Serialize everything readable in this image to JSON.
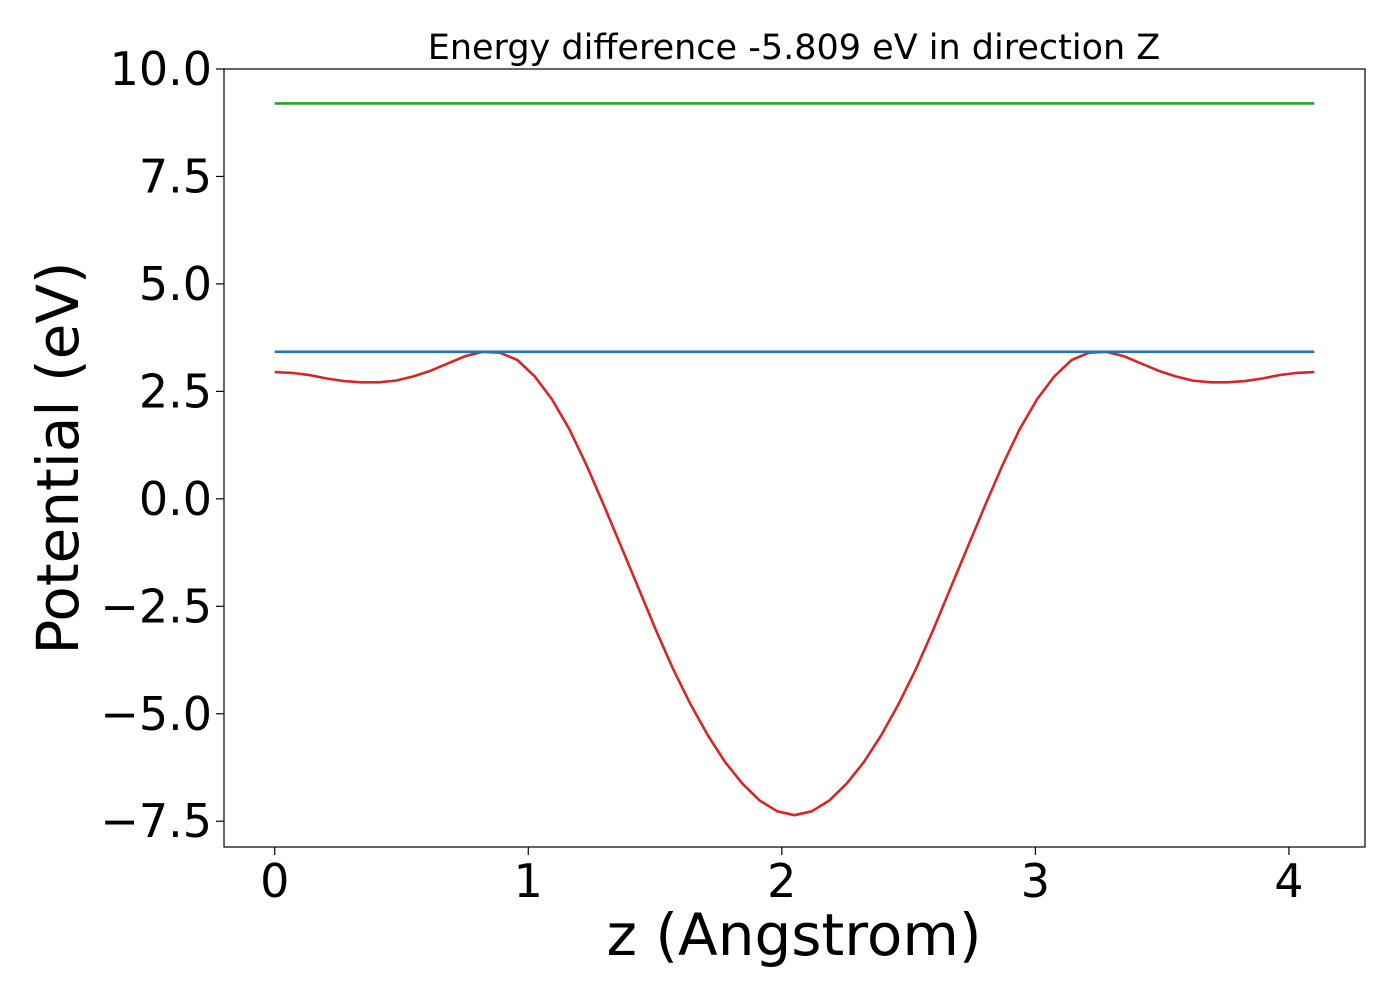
{
  "chart_data": {
    "type": "line",
    "title": "Energy difference -5.809 eV in direction Z",
    "xlabel": "z (Angstrom)",
    "ylabel": "Potential (eV)",
    "xlim": [
      -0.2,
      4.3
    ],
    "ylim": [
      -8.1,
      10.0
    ],
    "xticks": [
      0,
      1,
      2,
      3,
      4
    ],
    "xtick_labels": [
      "0",
      "1",
      "2",
      "3",
      "4"
    ],
    "yticks": [
      10.0,
      7.5,
      5.0,
      2.5,
      0.0,
      -2.5,
      -5.0,
      -7.5
    ],
    "ytick_labels": [
      "10.0",
      "7.5",
      "5.0",
      "2.5",
      "0.0",
      "−2.5",
      "−5.0",
      "−7.5"
    ],
    "grid": false,
    "legend": false,
    "series": [
      {
        "color": "#d62728",
        "x": [
          0.0,
          0.068,
          0.137,
          0.205,
          0.273,
          0.342,
          0.41,
          0.478,
          0.547,
          0.615,
          0.683,
          0.752,
          0.82,
          0.888,
          0.957,
          1.025,
          1.093,
          1.162,
          1.23,
          1.298,
          1.367,
          1.435,
          1.503,
          1.572,
          1.64,
          1.708,
          1.777,
          1.845,
          1.913,
          1.982,
          2.05,
          2.118,
          2.187,
          2.255,
          2.323,
          2.392,
          2.46,
          2.528,
          2.597,
          2.665,
          2.733,
          2.802,
          2.87,
          2.938,
          3.007,
          3.075,
          3.143,
          3.212,
          3.28,
          3.348,
          3.417,
          3.485,
          3.553,
          3.622,
          3.69,
          3.758,
          3.827,
          3.895,
          3.963,
          4.032,
          4.1
        ],
        "y": [
          2.95,
          2.93,
          2.88,
          2.8,
          2.74,
          2.71,
          2.71,
          2.75,
          2.85,
          2.98,
          3.15,
          3.32,
          3.42,
          3.4,
          3.23,
          2.85,
          2.32,
          1.62,
          0.78,
          -0.15,
          -1.12,
          -2.08,
          -3.05,
          -3.97,
          -4.78,
          -5.5,
          -6.13,
          -6.63,
          -7.02,
          -7.27,
          -7.36,
          -7.27,
          -7.02,
          -6.63,
          -6.13,
          -5.5,
          -4.78,
          -3.97,
          -3.05,
          -2.08,
          -1.12,
          -0.15,
          0.78,
          1.62,
          2.32,
          2.85,
          3.23,
          3.4,
          3.42,
          3.32,
          3.15,
          2.98,
          2.85,
          2.75,
          2.71,
          2.71,
          2.74,
          2.8,
          2.88,
          2.93,
          2.95
        ]
      },
      {
        "color": "#1f77b4",
        "x": [
          0.0,
          4.1
        ],
        "y": [
          3.42,
          3.42
        ]
      },
      {
        "color": "#2ca02c",
        "x": [
          0.0,
          4.1
        ],
        "y": [
          9.2,
          9.2
        ]
      }
    ]
  }
}
